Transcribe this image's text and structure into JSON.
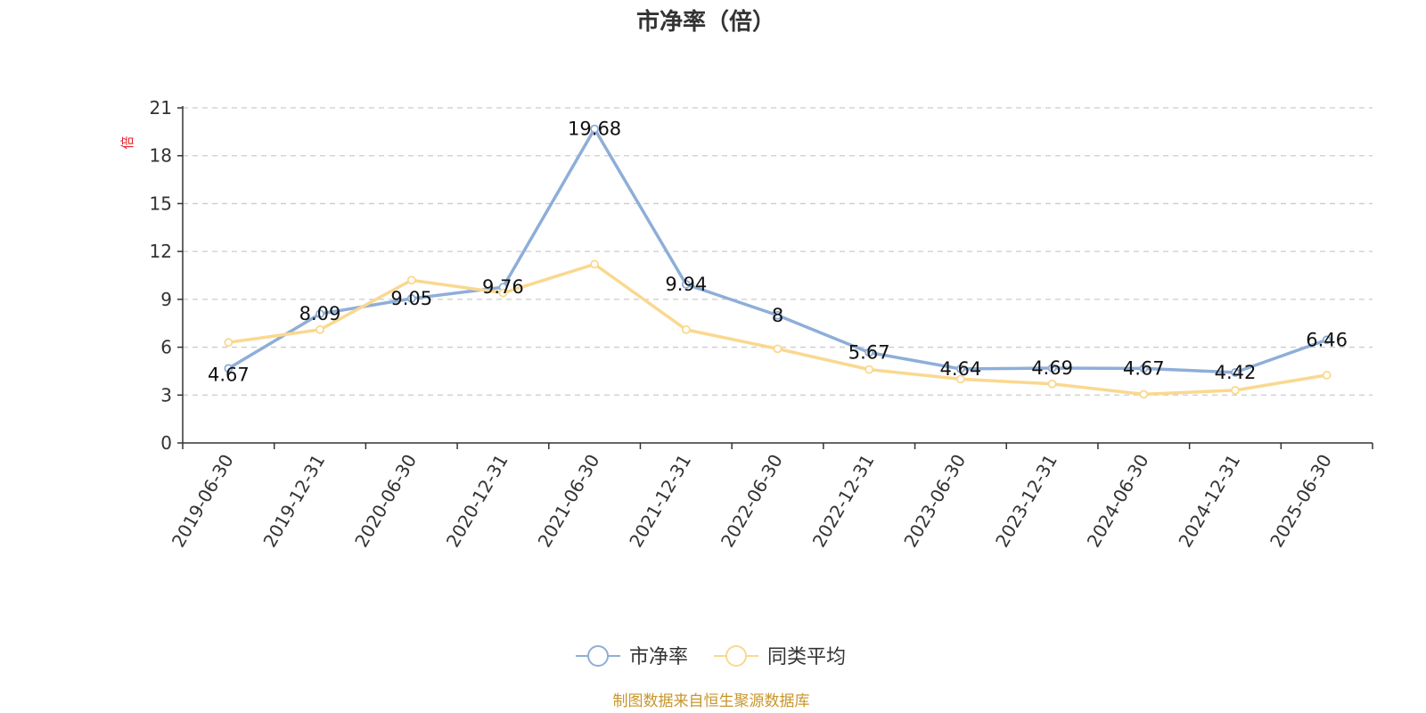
{
  "colors": {
    "series1": "#8eaed8",
    "series2": "#fad88f",
    "ylabel": "#e8222b",
    "source": "#c8962a",
    "grid": "#cccccc",
    "axis": "#333333"
  },
  "source_note": "制图数据来自恒生聚源数据库",
  "chart_data": {
    "type": "line",
    "title": "市净率（倍）",
    "ylabel": "倍",
    "xlabel": "",
    "ylim": [
      0,
      21
    ],
    "yticks": [
      0,
      3,
      6,
      9,
      12,
      15,
      18,
      21
    ],
    "grid": true,
    "legend_position": "bottom",
    "categories": [
      "2019-06-30",
      "2019-12-31",
      "2020-06-30",
      "2020-12-31",
      "2021-06-30",
      "2021-12-31",
      "2022-06-30",
      "2022-12-31",
      "2023-06-30",
      "2023-12-31",
      "2024-06-30",
      "2024-12-31",
      "2025-06-30"
    ],
    "series": [
      {
        "name": "市净率",
        "values": [
          4.67,
          8.09,
          9.05,
          9.76,
          19.68,
          9.94,
          8,
          5.67,
          4.64,
          4.69,
          4.67,
          4.42,
          6.46
        ],
        "labels": [
          "4.67",
          "8.09",
          "9.05",
          "9.76",
          "19.68",
          "9.94",
          "8",
          "5.67",
          "4.64",
          "4.69",
          "4.67",
          "4.42",
          "6.46"
        ]
      },
      {
        "name": "同类平均",
        "values": [
          6.3,
          7.1,
          10.2,
          9.4,
          11.2,
          7.1,
          5.9,
          4.6,
          4.0,
          3.7,
          3.05,
          3.3,
          4.25
        ]
      }
    ]
  }
}
